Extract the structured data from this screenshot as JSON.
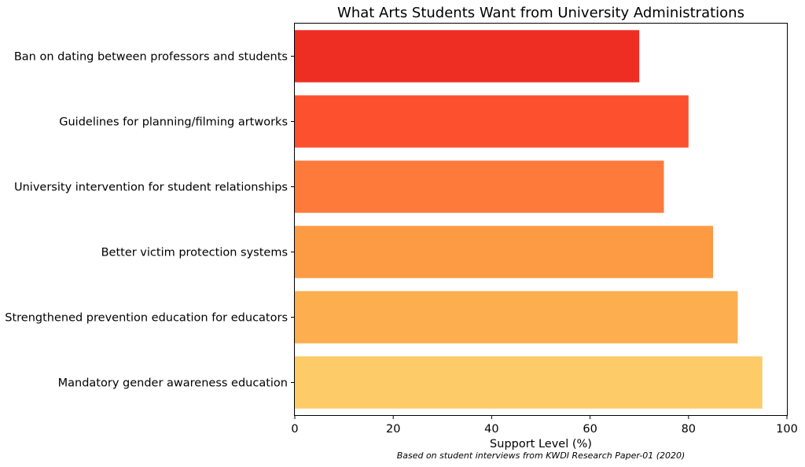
{
  "chart_data": {
    "type": "bar",
    "orientation": "horizontal",
    "title": "What Arts Students Want from University Administrations",
    "xlabel": "Support Level (%)",
    "ylabel": "",
    "xlim": [
      0,
      100
    ],
    "xticks": [
      "0",
      "20",
      "40",
      "60",
      "80",
      "100"
    ],
    "xtick_values": [
      0,
      20,
      40,
      60,
      80,
      100
    ],
    "grid": false,
    "categories": [
      "Ban on dating between professors and students",
      "Guidelines for planning/filming artworks",
      "University intervention for student relationships",
      "Better victim protection systems",
      "Strengthened prevention education for educators",
      "Mandatory gender awareness education"
    ],
    "values": [
      70,
      80,
      75,
      85,
      90,
      95
    ],
    "colors": [
      "#ee2e22",
      "#fc502e",
      "#fd7a3b",
      "#fd9b45",
      "#fdae4e",
      "#fdcb68"
    ],
    "annotation": "Based on student interviews from KWDI Research Paper-01 (2020)"
  }
}
